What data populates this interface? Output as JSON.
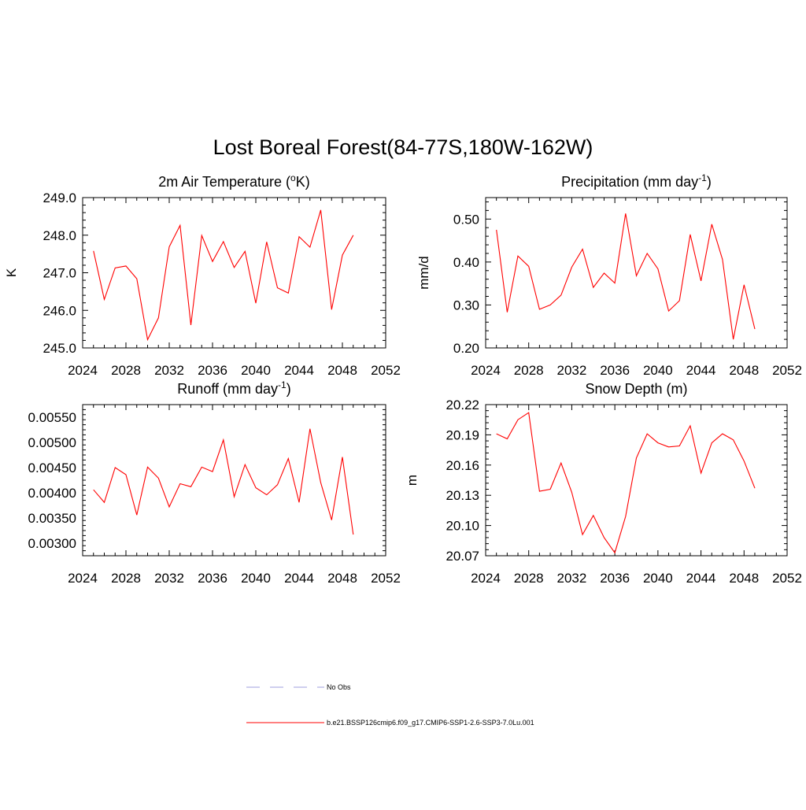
{
  "title": "Lost Boreal Forest(84-77S,180W-162W)",
  "chart_data": [
    {
      "type": "line",
      "title": "2m Air Temperature (oK)",
      "title_parts": {
        "pre": "2m Air Temperature (",
        "sup": "o",
        "post": "K)"
      },
      "ylabel": "K",
      "xlim": [
        2024,
        2052
      ],
      "ylim": [
        245.0,
        249.0
      ],
      "xticks": [
        2024,
        2028,
        2032,
        2036,
        2040,
        2044,
        2048,
        2052
      ],
      "yticks": [
        "245.0",
        "246.0",
        "247.0",
        "248.0",
        "249.0"
      ],
      "x": [
        2025,
        2026,
        2027,
        2028,
        2029,
        2030,
        2031,
        2032,
        2033,
        2034,
        2035,
        2036,
        2037,
        2038,
        2039,
        2040,
        2041,
        2042,
        2043,
        2044,
        2045,
        2046,
        2047,
        2048,
        2049
      ],
      "series": [
        {
          "values": [
            247.58,
            246.29,
            247.13,
            247.18,
            246.84,
            245.22,
            245.8,
            247.69,
            248.26,
            245.61,
            247.99,
            247.3,
            247.83,
            247.14,
            247.57,
            246.19,
            247.82,
            246.6,
            246.46,
            247.96,
            247.68,
            248.67,
            246.02,
            247.47,
            248.0
          ],
          "color": "#ff0000"
        }
      ]
    },
    {
      "type": "line",
      "title": "Precipitation (mm day-1)",
      "title_parts": {
        "pre": "Precipitation (mm day",
        "sup": "-1",
        "post": ")"
      },
      "ylabel": "mm/d",
      "xlim": [
        2024,
        2052
      ],
      "ylim": [
        0.2,
        0.55
      ],
      "xticks": [
        2024,
        2028,
        2032,
        2036,
        2040,
        2044,
        2048,
        2052
      ],
      "yticks": [
        "0.20",
        "0.30",
        "0.40",
        "0.50"
      ],
      "x": [
        2025,
        2026,
        2027,
        2028,
        2029,
        2030,
        2031,
        2032,
        2033,
        2034,
        2035,
        2036,
        2037,
        2038,
        2039,
        2040,
        2041,
        2042,
        2043,
        2044,
        2045,
        2046,
        2047,
        2048,
        2049
      ],
      "series": [
        {
          "values": [
            0.475,
            0.283,
            0.414,
            0.39,
            0.29,
            0.3,
            0.323,
            0.388,
            0.43,
            0.341,
            0.374,
            0.351,
            0.513,
            0.368,
            0.42,
            0.384,
            0.286,
            0.31,
            0.464,
            0.356,
            0.488,
            0.406,
            0.22,
            0.347,
            0.244
          ],
          "color": "#ff0000"
        }
      ]
    },
    {
      "type": "line",
      "title": "Runoff (mm day-1)",
      "title_parts": {
        "pre": "Runoff (mm day",
        "sup": "-1",
        "post": ")"
      },
      "ylabel": "",
      "xlim": [
        2024,
        2052
      ],
      "ylim": [
        0.00275,
        0.00575
      ],
      "xticks": [
        2024,
        2028,
        2032,
        2036,
        2040,
        2044,
        2048,
        2052
      ],
      "yticks": [
        "0.00300",
        "0.00350",
        "0.00400",
        "0.00450",
        "0.00500",
        "0.00550"
      ],
      "x": [
        2025,
        2026,
        2027,
        2028,
        2029,
        2030,
        2031,
        2032,
        2033,
        2034,
        2035,
        2036,
        2037,
        2038,
        2039,
        2040,
        2041,
        2042,
        2043,
        2044,
        2045,
        2046,
        2047,
        2048,
        2049
      ],
      "series": [
        {
          "values": [
            0.00406,
            0.00381,
            0.0045,
            0.00436,
            0.00356,
            0.00451,
            0.00429,
            0.00372,
            0.00418,
            0.00412,
            0.00451,
            0.00442,
            0.00505,
            0.00392,
            0.00456,
            0.0041,
            0.00396,
            0.00416,
            0.00468,
            0.00381,
            0.00527,
            0.0042,
            0.00346,
            0.00471,
            0.00317
          ],
          "color": "#ff0000"
        }
      ]
    },
    {
      "type": "line",
      "title": "Snow Depth (m)",
      "title_parts": {
        "pre": "Snow Depth (m)",
        "sup": "",
        "post": ""
      },
      "ylabel": "m",
      "xlim": [
        2024,
        2052
      ],
      "ylim": [
        20.07,
        20.22
      ],
      "xticks": [
        2024,
        2028,
        2032,
        2036,
        2040,
        2044,
        2048,
        2052
      ],
      "yticks": [
        "20.07",
        "20.10",
        "20.13",
        "20.16",
        "20.19",
        "20.22"
      ],
      "x": [
        2025,
        2026,
        2027,
        2028,
        2029,
        2030,
        2031,
        2032,
        2033,
        2034,
        2035,
        2036,
        2037,
        2038,
        2039,
        2040,
        2041,
        2042,
        2043,
        2044,
        2045,
        2046,
        2047,
        2048,
        2049
      ],
      "series": [
        {
          "values": [
            20.191,
            20.186,
            20.205,
            20.212,
            20.134,
            20.136,
            20.162,
            20.133,
            20.091,
            20.11,
            20.088,
            20.073,
            20.109,
            20.167,
            20.191,
            20.182,
            20.178,
            20.179,
            20.199,
            20.152,
            20.182,
            20.191,
            20.185,
            20.164,
            20.137
          ],
          "color": "#ff0000"
        }
      ]
    }
  ],
  "legend": [
    {
      "label": "No Obs",
      "style": "dashed",
      "color": "#9f9fdf"
    },
    {
      "label": "b.e21.BSSP126cmip6.f09_g17.CMIP6-SSP1-2.6-SSP3-7.0Lu.001",
      "style": "solid",
      "color": "#ff0000"
    }
  ]
}
